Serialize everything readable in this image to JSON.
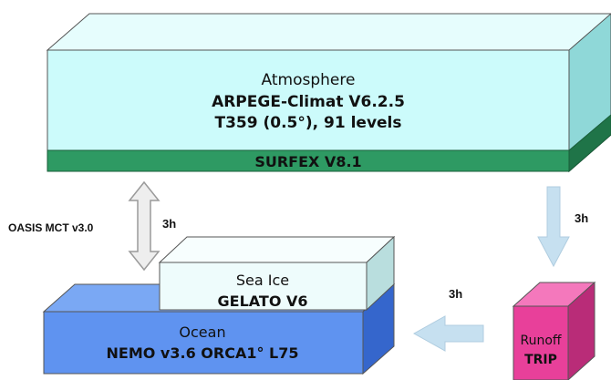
{
  "atmosphere": {
    "title": "Atmosphere",
    "model": "ARPEGE-Climat V6.2.5",
    "resolution": "T359 (0.5°), 91 levels",
    "surface_model": "SURFEX V8.1",
    "colors": {
      "front": "#ccfbfb",
      "top": "#e6fdfd",
      "side": "#8fd8d8",
      "surfex": "#2e9a63",
      "surfex_side": "#1f7448"
    }
  },
  "coupler": {
    "name": "OASIS MCT v3.0",
    "frequency": "3h"
  },
  "sea_ice": {
    "title": "Sea Ice",
    "model": "GELATO V6",
    "colors": {
      "front": "#eefcfc",
      "top": "#f7fefe",
      "side": "#b9dede"
    }
  },
  "ocean": {
    "title": "Ocean",
    "model": "NEMO v3.6 ORCA1° L75",
    "colors": {
      "front": "#5f93f0",
      "top": "#7aa8f4",
      "side": "#3566cc"
    }
  },
  "runoff": {
    "title": "Runoff",
    "model": "TRIP",
    "colors": {
      "front": "#e8409a",
      "top": "#f478bc",
      "side": "#b92c78"
    }
  },
  "flows": {
    "atm_to_runoff_freq": "3h",
    "runoff_to_ocean_freq": "3h",
    "arrow_color": "#c6e0f0"
  }
}
